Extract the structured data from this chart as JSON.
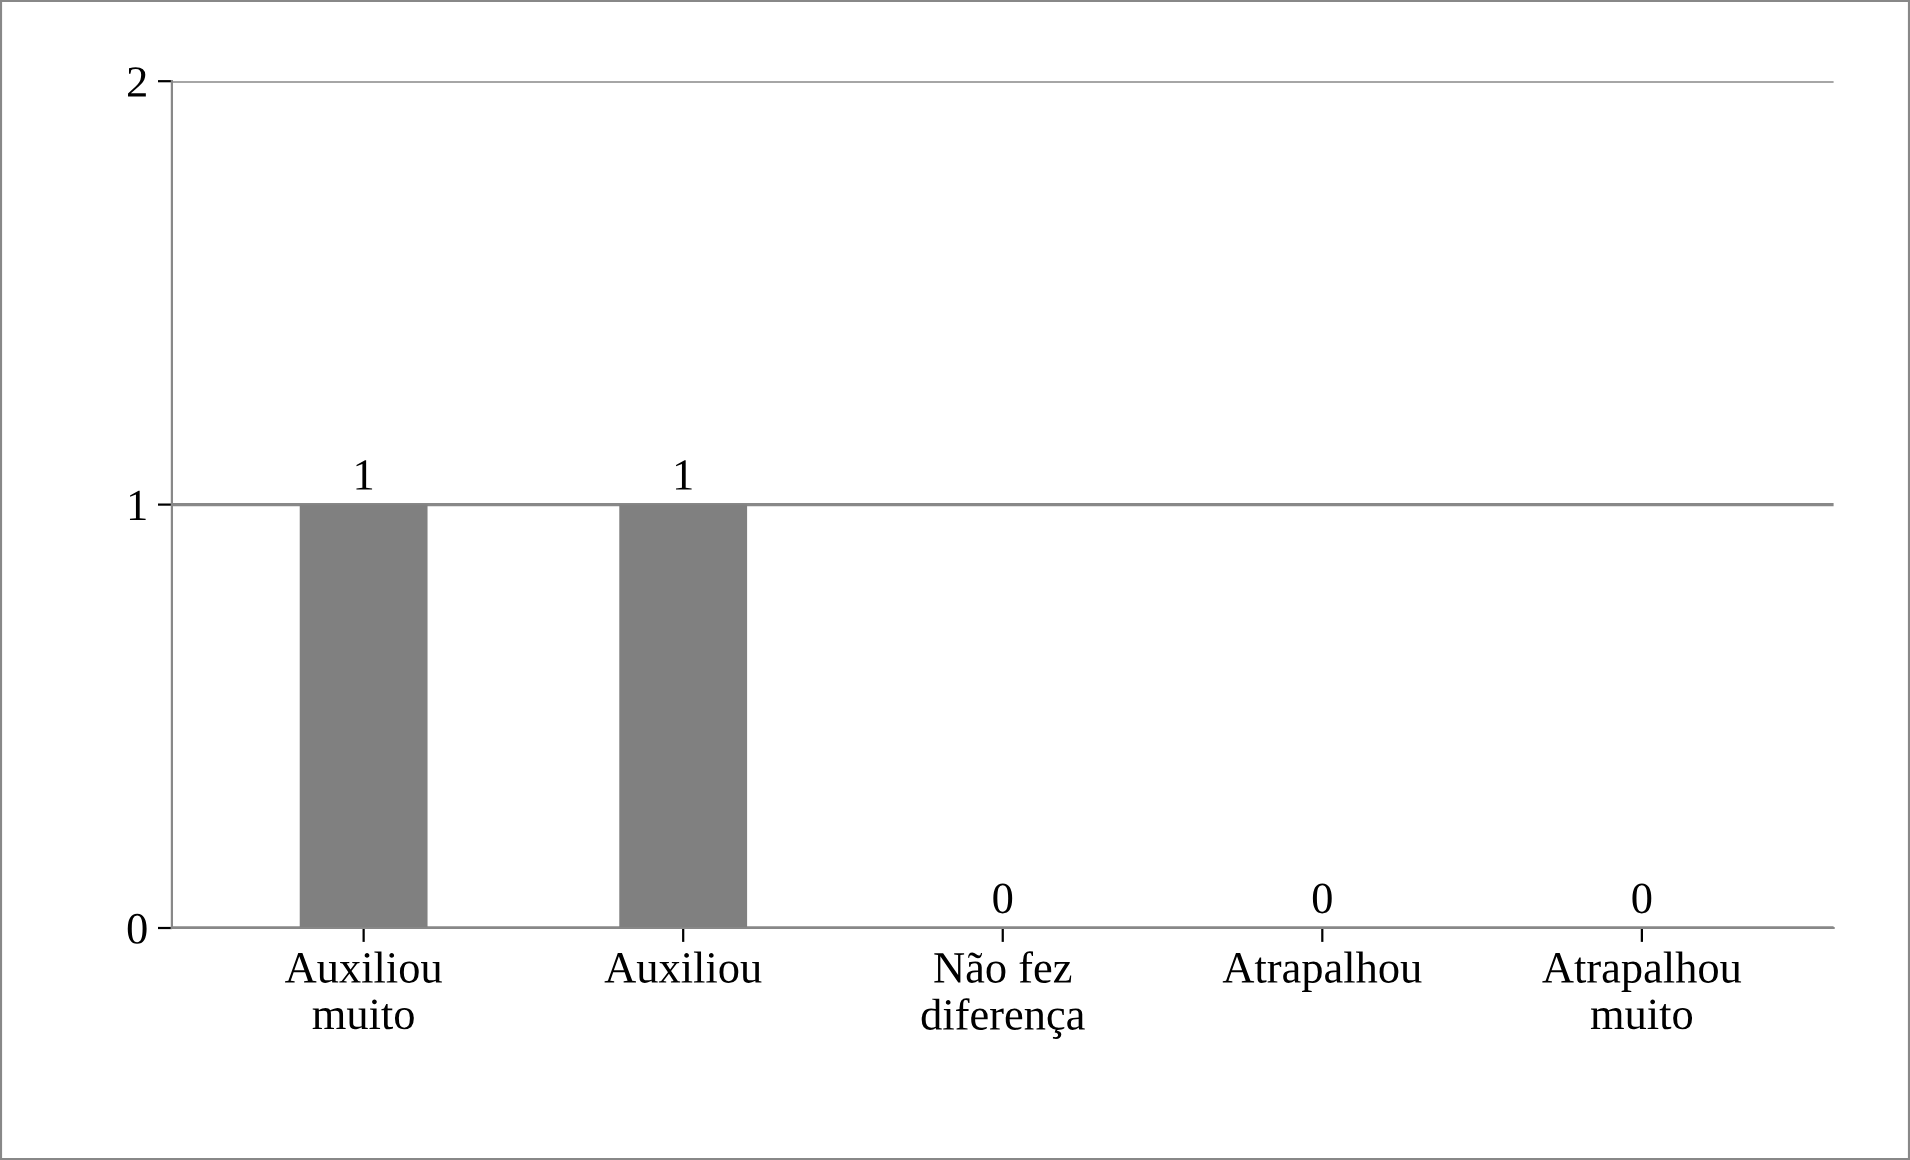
{
  "chart_data": {
    "type": "bar",
    "categories": [
      "Auxiliou muito",
      "Auxiliou",
      "Não fez diferença",
      "Atrapalhou",
      "Atrapalhou muito"
    ],
    "values": [
      1,
      1,
      0,
      0,
      0
    ],
    "color": "#808080",
    "ylim": [
      0,
      2
    ],
    "yticks": [
      0,
      1,
      2
    ],
    "grid": "y",
    "data_labels": true
  }
}
